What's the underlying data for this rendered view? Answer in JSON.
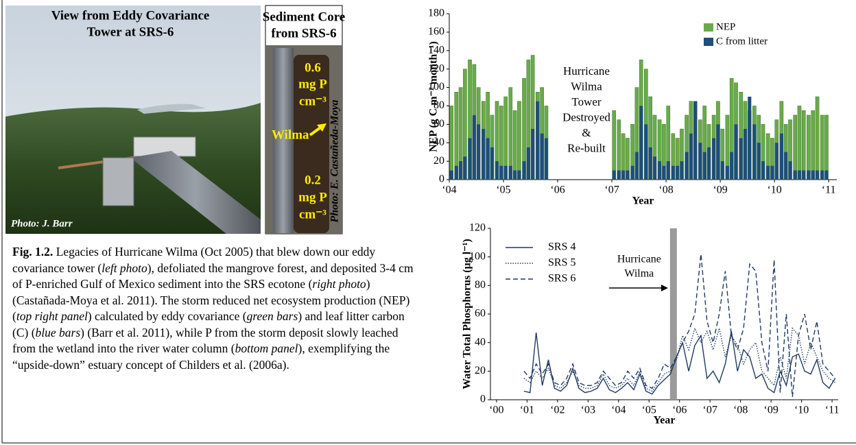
{
  "photos": [
    {
      "title_lines": [
        "View from Eddy Covariance",
        "Tower at SRS-6"
      ],
      "credit": "Photo: J. Barr"
    },
    {
      "title_lines": [
        "Sediment Core",
        "from SRS-6"
      ],
      "labels_top": [
        "0.6",
        "mg P",
        "cm⁻³"
      ],
      "arrow_label": "Wilma",
      "labels_bottom": [
        "0.2",
        "mg P",
        "cm⁻³"
      ],
      "credit": "Photo: E. Castañeda-Moya"
    }
  ],
  "caption": [
    {
      "text": "Fig. 1.2.",
      "style": "bold"
    },
    {
      "text": " Legacies of Hurricane Wilma (Oct 2005) that blew down our eddy covariance tower (",
      "style": "normal"
    },
    {
      "text": "left photo",
      "style": "italic"
    },
    {
      "text": "), defoliated the mangrove forest, and deposited 3-4 cm of P-enriched Gulf of Mexico sediment into the SRS ecotone (",
      "style": "normal"
    },
    {
      "text": "right photo",
      "style": "italic"
    },
    {
      "text": ") (Castañada-Moya et al. 2011). The storm reduced net ecosystem production (NEP) (",
      "style": "normal"
    },
    {
      "text": "top right panel",
      "style": "italic"
    },
    {
      "text": ") calculated by eddy covariance (",
      "style": "normal"
    },
    {
      "text": "green bars",
      "style": "italic"
    },
    {
      "text": ") and leaf litter carbon (C) (",
      "style": "normal"
    },
    {
      "text": "blue bars",
      "style": "italic"
    },
    {
      "text": ") (Barr et al. 2011), while P from the storm deposit slowly leached from the wetland into the river water column (",
      "style": "normal"
    },
    {
      "text": "bottom panel",
      "style": "italic"
    },
    {
      "text": "), exemplifying the “upside-down” estuary concept of Childers et al. (2006a).",
      "style": "normal"
    }
  ],
  "chart_data": [
    {
      "type": "bar",
      "y_label": "NEP (g C m⁻² month⁻¹)",
      "x_label": "Year",
      "legend": "upper right",
      "annotation_lines": [
        "Hurricane",
        "Wilma",
        "Tower",
        "Destroyed",
        "&",
        "Re-built"
      ],
      "xlim": [
        2004,
        2011.15
      ],
      "xticks": [
        {
          "value": 2004,
          "label": "‘04"
        },
        {
          "value": 2005,
          "label": "‘05"
        },
        {
          "value": 2006,
          "label": "‘06"
        },
        {
          "value": 2007,
          "label": "‘07"
        },
        {
          "value": 2008,
          "label": "‘08"
        },
        {
          "value": 2009,
          "label": "‘09"
        },
        {
          "value": 2010,
          "label": "‘10"
        },
        {
          "value": 2011,
          "label": "‘11"
        }
      ],
      "ylim": [
        0,
        180
      ],
      "yticks": [
        0,
        20,
        40,
        60,
        80,
        100,
        120,
        140,
        160,
        180
      ],
      "x": [
        2004.04,
        2004.13,
        2004.21,
        2004.29,
        2004.38,
        2004.46,
        2004.54,
        2004.63,
        2004.71,
        2004.79,
        2004.88,
        2004.96,
        2005.04,
        2005.13,
        2005.21,
        2005.29,
        2005.38,
        2005.46,
        2005.54,
        2005.63,
        2005.71,
        2005.79,
        2007.04,
        2007.13,
        2007.21,
        2007.29,
        2007.38,
        2007.46,
        2007.54,
        2007.63,
        2007.71,
        2007.79,
        2007.88,
        2007.96,
        2008.04,
        2008.13,
        2008.21,
        2008.29,
        2008.38,
        2008.46,
        2008.54,
        2008.63,
        2008.71,
        2008.79,
        2008.88,
        2008.96,
        2009.04,
        2009.13,
        2009.21,
        2009.29,
        2009.38,
        2009.46,
        2009.54,
        2009.63,
        2009.71,
        2009.79,
        2009.88,
        2009.96,
        2010.04,
        2010.13,
        2010.21,
        2010.29,
        2010.38,
        2010.46,
        2010.54,
        2010.63,
        2010.71,
        2010.79,
        2010.88,
        2010.96
      ],
      "series": [
        {
          "name": "NEP",
          "color": "#6aaa4a",
          "values": [
            80,
            95,
            100,
            120,
            130,
            125,
            100,
            85,
            95,
            70,
            85,
            80,
            90,
            100,
            75,
            85,
            110,
            130,
            135,
            95,
            100,
            80,
            75,
            65,
            50,
            45,
            60,
            100,
            130,
            120,
            90,
            70,
            65,
            60,
            80,
            50,
            45,
            55,
            70,
            85,
            85,
            65,
            80,
            60,
            70,
            85,
            55,
            70,
            110,
            105,
            95,
            85,
            75,
            80,
            70,
            60,
            50,
            45,
            65,
            85,
            60,
            65,
            70,
            80,
            75,
            70,
            75,
            90,
            70,
            70
          ]
        },
        {
          "name": "C from litter",
          "color": "#1f4e79",
          "values": [
            10,
            15,
            20,
            25,
            45,
            70,
            60,
            55,
            45,
            35,
            20,
            15,
            15,
            15,
            10,
            10,
            20,
            35,
            55,
            85,
            50,
            45,
            10,
            10,
            10,
            10,
            15,
            30,
            80,
            60,
            35,
            25,
            20,
            15,
            20,
            15,
            15,
            20,
            30,
            50,
            85,
            40,
            30,
            35,
            45,
            60,
            20,
            15,
            30,
            60,
            45,
            55,
            90,
            60,
            40,
            20,
            15,
            15,
            40,
            50,
            30,
            20,
            10,
            10,
            10,
            10,
            10,
            10,
            10,
            10
          ]
        }
      ]
    },
    {
      "type": "line",
      "y_label": "Water Total Phosphorus (µg l⁻¹)",
      "x_label": "Year",
      "legend": "upper left",
      "annotation": {
        "lines": [
          "Hurricane",
          "Wilma"
        ],
        "x": 2005.8
      },
      "xlim": [
        1999.8,
        2011.2
      ],
      "xticks": [
        {
          "value": 2000,
          "label": "‘00"
        },
        {
          "value": 2001,
          "label": "‘01"
        },
        {
          "value": 2002,
          "label": "‘02"
        },
        {
          "value": 2003,
          "label": "‘03"
        },
        {
          "value": 2004,
          "label": "‘04"
        },
        {
          "value": 2005,
          "label": "‘05"
        },
        {
          "value": 2006,
          "label": "‘06"
        },
        {
          "value": 2007,
          "label": "‘07"
        },
        {
          "value": 2008,
          "label": "‘08"
        },
        {
          "value": 2009,
          "label": "‘09"
        },
        {
          "value": 2010,
          "label": "‘10"
        },
        {
          "value": 2011,
          "label": "‘11"
        }
      ],
      "ylim": [
        0,
        120
      ],
      "yticks": [
        0,
        20,
        40,
        60,
        80,
        100,
        120
      ],
      "x": [
        2000.9,
        2001.1,
        2001.3,
        2001.5,
        2001.7,
        2001.9,
        2002.1,
        2002.3,
        2002.5,
        2002.7,
        2002.9,
        2003.1,
        2003.3,
        2003.5,
        2003.7,
        2003.9,
        2004.1,
        2004.3,
        2004.5,
        2004.7,
        2004.9,
        2005.1,
        2005.3,
        2005.5,
        2005.7,
        2005.9,
        2006.1,
        2006.3,
        2006.5,
        2006.7,
        2006.9,
        2007.1,
        2007.3,
        2007.5,
        2007.7,
        2007.9,
        2008.1,
        2008.3,
        2008.5,
        2008.7,
        2008.9,
        2009.1,
        2009.3,
        2009.5,
        2009.7,
        2009.9,
        2010.1,
        2010.3,
        2010.5,
        2010.7,
        2010.9,
        2011.1
      ],
      "series": [
        {
          "name": "SRS 4",
          "color": "#1f3864",
          "dash": "solid",
          "values": [
            6,
            5,
            47,
            10,
            28,
            8,
            6,
            10,
            22,
            8,
            5,
            6,
            8,
            15,
            7,
            5,
            8,
            12,
            7,
            18,
            6,
            4,
            10,
            14,
            18,
            30,
            40,
            20,
            38,
            45,
            15,
            20,
            12,
            25,
            48,
            20,
            35,
            30,
            15,
            18,
            8,
            5,
            20,
            10,
            30,
            32,
            20,
            18,
            28,
            12,
            8,
            15
          ]
        },
        {
          "name": "SRS 5",
          "color": "#1f3864",
          "dash": "dotted",
          "values": [
            15,
            12,
            20,
            15,
            22,
            10,
            8,
            12,
            20,
            10,
            8,
            8,
            10,
            18,
            10,
            8,
            10,
            15,
            10,
            20,
            8,
            6,
            12,
            18,
            20,
            28,
            45,
            35,
            50,
            40,
            48,
            35,
            50,
            30,
            45,
            38,
            25,
            35,
            40,
            20,
            15,
            10,
            30,
            15,
            50,
            45,
            25,
            40,
            30,
            20,
            15,
            12
          ]
        },
        {
          "name": "SRS 6",
          "color": "#1f3864",
          "dash": "dashed",
          "values": [
            20,
            15,
            25,
            18,
            25,
            12,
            10,
            15,
            25,
            12,
            10,
            10,
            12,
            20,
            15,
            10,
            12,
            20,
            15,
            22,
            10,
            8,
            15,
            25,
            22,
            30,
            40,
            48,
            60,
            102,
            55,
            40,
            60,
            90,
            45,
            35,
            50,
            95,
            90,
            40,
            20,
            98,
            5,
            60,
            2,
            45,
            60,
            35,
            55,
            25,
            20,
            15
          ]
        }
      ]
    }
  ]
}
